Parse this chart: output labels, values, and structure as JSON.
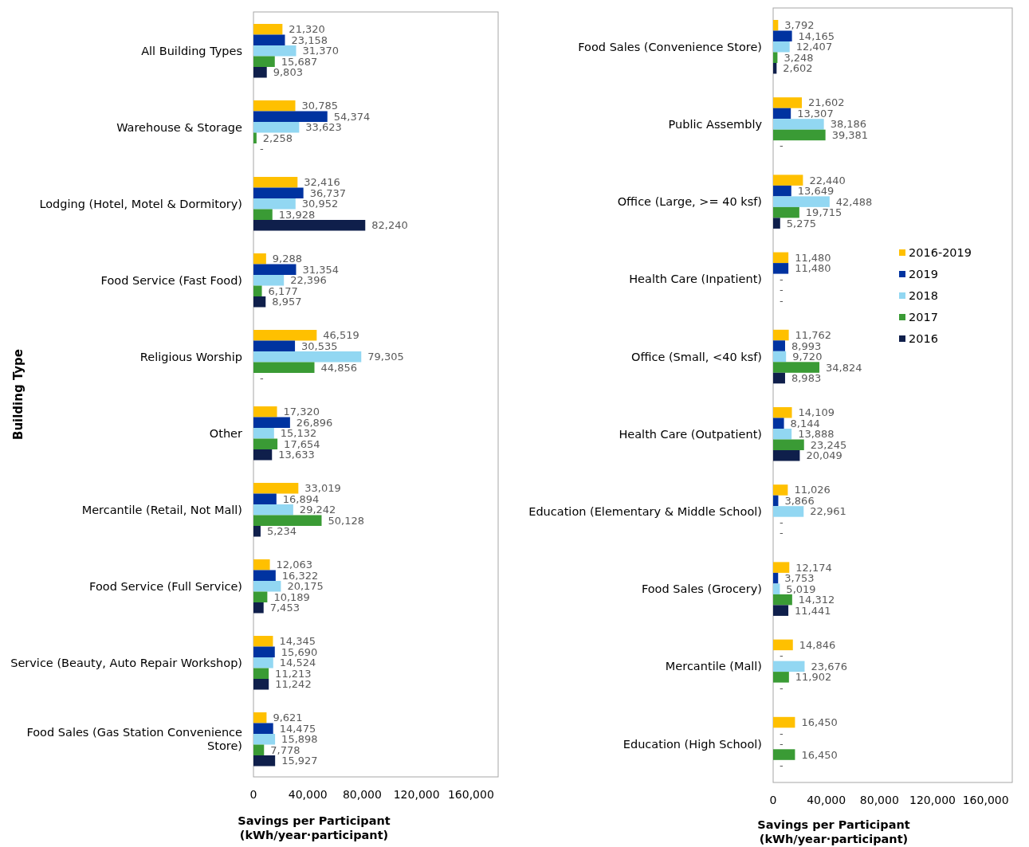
{
  "chart_data": [
    {
      "type": "bar",
      "orientation": "horizontal",
      "ylabel": "Building Type",
      "xlabel": "Savings per Participant\n(kWh/year·participant)",
      "legend": false,
      "grid": false,
      "xlim": [
        0,
        180000
      ],
      "xticks": [
        0,
        {
          "value": 40000,
          "label": "40,000"
        },
        {
          "value": 80000,
          "label": "80,000"
        },
        {
          "value": 120000,
          "label": "120,000"
        },
        {
          "value": 160000,
          "label": "160,000"
        }
      ],
      "categories": [
        "All Building Types",
        "Warehouse & Storage",
        "Lodging (Hotel, Motel & Dormitory)",
        "Food Service (Fast Food)",
        "Religious Worship",
        "Other",
        "Mercantile (Retail, Not Mall)",
        "Food Service (Full Service)",
        "Service (Beauty, Auto Repair Workshop)",
        "Food Sales (Gas Station Convenience Store)"
      ],
      "series": [
        {
          "color": "#ffc000",
          "values": [
            21320,
            30785,
            32416,
            9288,
            46519,
            17320,
            33019,
            12063,
            14345,
            9621
          ],
          "value_labels": [
            "21,320",
            "30,785",
            "32,416",
            "9,288",
            "46,519",
            "17,320",
            "33,019",
            "12,063",
            "14,345",
            "9,621"
          ]
        },
        {
          "color": "#0033a0",
          "values": [
            23158,
            54374,
            36737,
            31354,
            30535,
            26896,
            16894,
            16322,
            15690,
            14475
          ],
          "value_labels": [
            "23,158",
            "54,374",
            "36,737",
            "31,354",
            "30,535",
            "26,896",
            "16,894",
            "16,322",
            "15,690",
            "14,475"
          ]
        },
        {
          "color": "#92d7f2",
          "values": [
            31370,
            33623,
            30952,
            22396,
            79305,
            15132,
            29242,
            20175,
            14524,
            15898
          ],
          "value_labels": [
            "31,370",
            "33,623",
            "30,952",
            "22,396",
            "79,305",
            "15,132",
            "29,242",
            "20,175",
            "14,524",
            "15,898"
          ]
        },
        {
          "color": "#3a9b35",
          "values": [
            15687,
            2258,
            13928,
            6177,
            44856,
            17654,
            50128,
            10189,
            11213,
            7778
          ],
          "value_labels": [
            "15,687",
            "2,258",
            "13,928",
            "6,177",
            "44,856",
            "17,654",
            "50,128",
            "10,189",
            "11,213",
            "7,778"
          ]
        },
        {
          "color": "#0f1f4b",
          "values": [
            9803,
            null,
            82240,
            8957,
            null,
            13633,
            5234,
            7453,
            11242,
            15927
          ],
          "value_labels": [
            "9,803",
            "-",
            "82,240",
            "8,957",
            "-",
            "13,633",
            "5,234",
            "7,453",
            "11,242",
            "15,927"
          ]
        }
      ]
    },
    {
      "type": "bar",
      "orientation": "horizontal",
      "xlabel": "Savings per Participant\n(kWh/year·participant)",
      "legend": "right",
      "grid": false,
      "xlim": [
        0,
        180000
      ],
      "xticks": [
        0,
        {
          "value": 40000,
          "label": "40,000"
        },
        {
          "value": 80000,
          "label": "80,000"
        },
        {
          "value": 120000,
          "label": "120,000"
        },
        {
          "value": 160000,
          "label": "160,000"
        }
      ],
      "categories": [
        "Food Sales (Convenience Store)",
        "Public Assembly",
        "Office (Large, >= 40 ksf)",
        "Health Care (Inpatient)",
        "Office (Small, <40 ksf)",
        "Health Care (Outpatient)",
        "Education (Elementary & Middle School)",
        "Food Sales (Grocery)",
        "Mercantile (Mall)",
        "Education (High School)"
      ],
      "series": [
        {
          "name": "2016-2019",
          "color": "#ffc000",
          "values": [
            3792,
            21602,
            22440,
            11480,
            11762,
            14109,
            11026,
            12174,
            14846,
            16450
          ],
          "value_labels": [
            "3,792",
            "21,602",
            "22,440",
            "11,480",
            "11,762",
            "14,109",
            "11,026",
            "12,174",
            "14,846",
            "16,450"
          ]
        },
        {
          "name": "2019",
          "color": "#0033a0",
          "values": [
            14165,
            13307,
            13649,
            11480,
            8993,
            8144,
            3866,
            3753,
            null,
            null
          ],
          "value_labels": [
            "14,165",
            "13,307",
            "13,649",
            "11,480",
            "8,993",
            "8,144",
            "3,866",
            "3,753",
            "-",
            "-"
          ]
        },
        {
          "name": "2018",
          "color": "#92d7f2",
          "values": [
            12407,
            38186,
            42488,
            null,
            9720,
            13888,
            22961,
            5019,
            23676,
            null
          ],
          "value_labels": [
            "12,407",
            "38,186",
            "42,488",
            "-",
            "9,720",
            "13,888",
            "22,961",
            "5,019",
            "23,676",
            "-"
          ]
        },
        {
          "name": "2017",
          "color": "#3a9b35",
          "values": [
            3248,
            39381,
            19715,
            null,
            34824,
            23245,
            null,
            14312,
            11902,
            16450
          ],
          "value_labels": [
            "3,248",
            "39,381",
            "19,715",
            "-",
            "34,824",
            "23,245",
            "-",
            "14,312",
            "11,902",
            "16,450"
          ]
        },
        {
          "name": "2016",
          "color": "#0f1f4b",
          "values": [
            2602,
            null,
            5275,
            null,
            8983,
            20049,
            null,
            11441,
            null,
            null
          ],
          "value_labels": [
            "2,602",
            "-",
            "5,275",
            "-",
            "8,983",
            "20,049",
            "-",
            "11,441",
            "-",
            "-"
          ]
        }
      ]
    }
  ]
}
